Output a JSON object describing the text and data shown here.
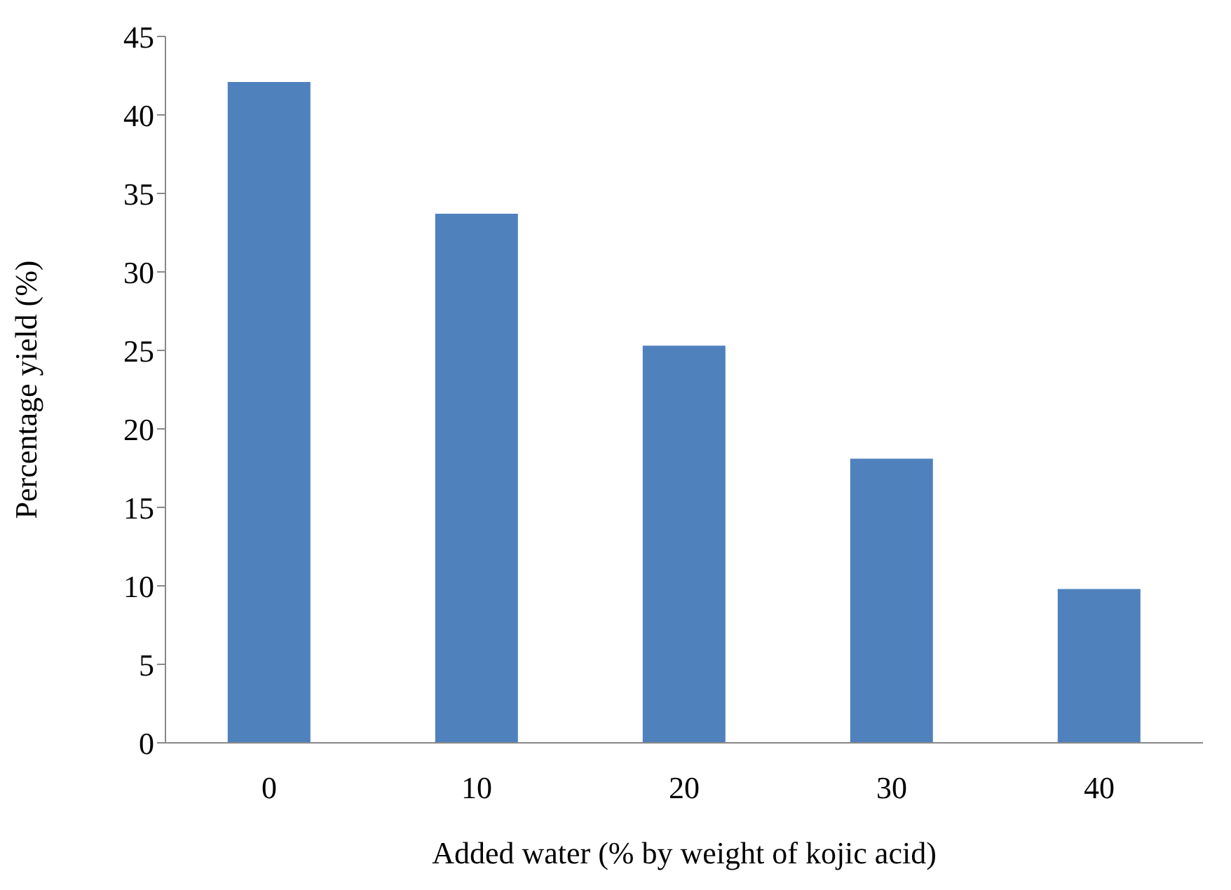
{
  "chart_data": {
    "type": "bar",
    "xlabel": "Added water (% by weight of kojic acid)",
    "ylabel": "Percentage yield (%)",
    "categories": [
      "0",
      "10",
      "20",
      "30",
      "40"
    ],
    "values": [
      42.1,
      33.7,
      25.3,
      18.1,
      9.8
    ],
    "color": "#4f81bd",
    "ylim": [
      0,
      45
    ],
    "yticks": [
      0,
      5,
      10,
      15,
      20,
      25,
      30,
      35,
      40,
      45
    ],
    "grid": false,
    "legend": false
  }
}
